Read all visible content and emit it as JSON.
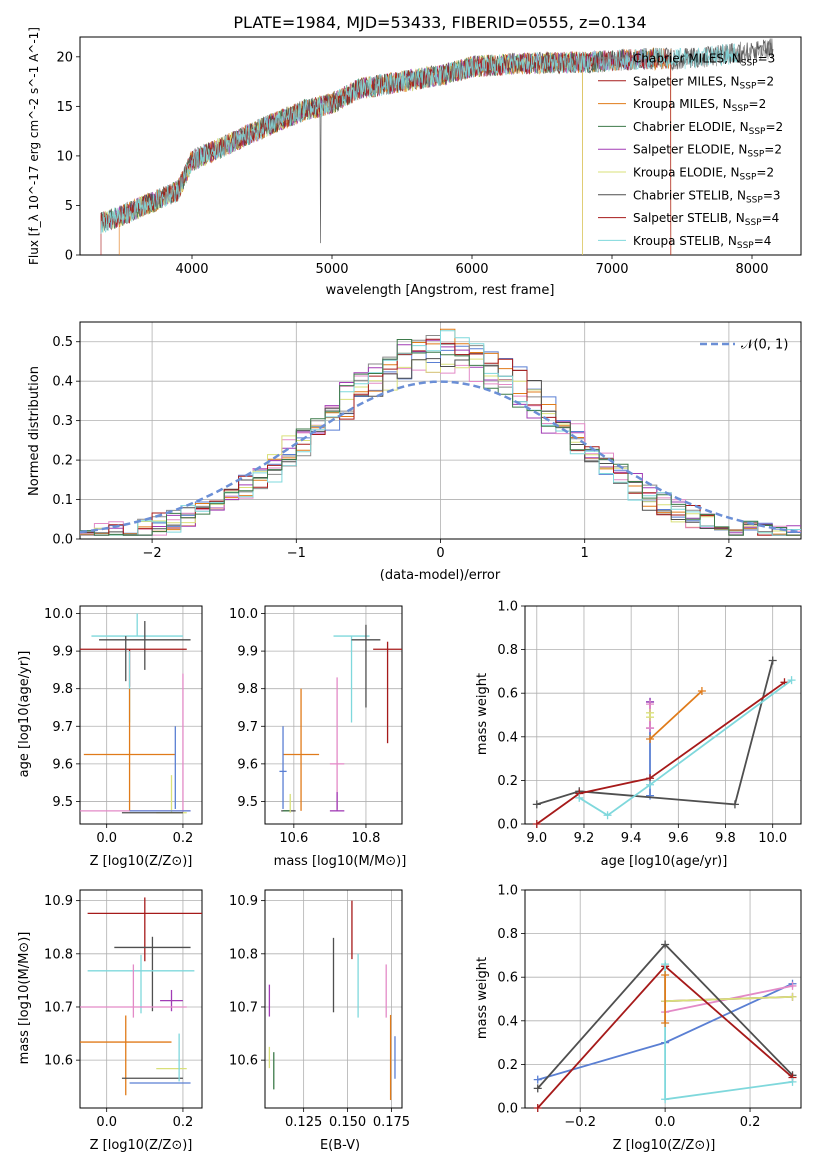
{
  "colors": {
    "blue": "#5a7fd3",
    "orange": "#e07b1a",
    "gray": "#8a8a8a",
    "purple": "#a23cb5",
    "pink": "#e38ac7",
    "yellow": "#d9e07a",
    "dark": "#4f4f4f",
    "red": "#a61a1a",
    "cyan": "#7fd8dc",
    "green": "#3d7a4a"
  },
  "chart_data": [
    {
      "id": "spectrum",
      "type": "line",
      "title": "PLATE=1984, MJD=53433, FIBERID=0555, z=0.134",
      "xlabel": "wavelength [Angstrom, rest frame]",
      "ylabel": "Flux [f_λ 10^-17 erg cm^-2 s^-1 A^-1]",
      "xlim": [
        3200,
        8350
      ],
      "ylim": [
        0,
        22
      ],
      "xticks": [
        "4000",
        "5000",
        "6000",
        "7000",
        "8000"
      ],
      "yticks": [
        "0",
        "5",
        "10",
        "15",
        "20"
      ],
      "grid": false,
      "legend_position": "top-right",
      "legend": [
        "Chabrier MILES, N_SSP=3",
        "Salpeter MILES, N_SSP=2",
        "Kroupa MILES, N_SSP=2",
        "Chabrier ELODIE, N_SSP=2",
        "Salpeter ELODIE, N_SSP=2",
        "Kroupa ELODIE, N_SSP=2",
        "Chabrier STELIB, N_SSP=3",
        "Salpeter STELIB, N_SSP=4",
        "Kroupa STELIB, N_SSP=4"
      ],
      "continuum": {
        "wavelength": [
          3350,
          3500,
          3700,
          3900,
          4000,
          4200,
          4500,
          4800,
          5000,
          5200,
          5500,
          5800,
          6000,
          6300,
          6600,
          6900,
          7200,
          7500,
          7800,
          8100
        ],
        "flux": [
          3.2,
          4.0,
          5.2,
          6.5,
          9.5,
          10.8,
          12.8,
          14.6,
          15.3,
          16.8,
          17.5,
          18.2,
          19.0,
          19.3,
          19.4,
          19.5,
          19.8,
          19.8,
          20.2,
          20.8
        ]
      }
    },
    {
      "id": "residuals",
      "type": "histogram",
      "xlabel": "(data-model)/error",
      "ylabel": "Normed distribution",
      "xlim": [
        -2.5,
        2.5
      ],
      "ylim": [
        0,
        0.55
      ],
      "xticks": [
        "−2",
        "−1",
        "0",
        "1",
        "2"
      ],
      "yticks": [
        "0.0",
        "0.1",
        "0.2",
        "0.3",
        "0.4",
        "0.5"
      ],
      "grid": true,
      "legend_position": "top-right",
      "legend": [
        "𝒩(0, 1)"
      ],
      "bin_width": 0.1
    },
    {
      "id": "age_vs_Z",
      "type": "scatter",
      "xlabel": "Z [log10(Z/Z⊙)]",
      "ylabel": "age  [log10(age/yr)]",
      "xlim": [
        -0.07,
        0.25
      ],
      "ylim": [
        9.44,
        10.02
      ],
      "xticks": [
        "0.0",
        "0.2"
      ],
      "yticks": [
        "9.5",
        "9.6",
        "9.7",
        "9.8",
        "9.9",
        "10.0"
      ],
      "grid": true
    },
    {
      "id": "age_vs_mass",
      "type": "scatter",
      "xlabel": "mass [log10(M/M⊙)]",
      "ylabel": "",
      "xlim": [
        10.52,
        10.9
      ],
      "ylim": [
        9.44,
        10.02
      ],
      "xticks": [
        "10.6",
        "10.8"
      ],
      "yticks": [
        "9.5",
        "9.6",
        "9.7",
        "9.8",
        "9.9",
        "10.0"
      ],
      "grid": true
    },
    {
      "id": "mass_weight_vs_age",
      "type": "line",
      "xlabel": "age  [log10(age/yr)]",
      "ylabel": "mass weight",
      "xlim": [
        8.95,
        10.12
      ],
      "ylim": [
        0,
        1
      ],
      "xticks": [
        "9.0",
        "9.2",
        "9.4",
        "9.6",
        "9.8",
        "10.0"
      ],
      "yticks": [
        "0.0",
        "0.2",
        "0.4",
        "0.6",
        "0.8",
        "1.0"
      ],
      "grid": true,
      "series": [
        {
          "color": "blue",
          "x": [
            9.48,
            9.48
          ],
          "y": [
            0.13,
            0.56
          ]
        },
        {
          "color": "orange",
          "x": [
            9.48,
            9.7
          ],
          "y": [
            0.39,
            0.61
          ]
        },
        {
          "color": "purple",
          "x": [
            9.48,
            9.48
          ],
          "y": [
            0.44,
            0.56
          ]
        },
        {
          "color": "pink",
          "x": [
            9.48,
            9.48
          ],
          "y": [
            0.44,
            0.55
          ]
        },
        {
          "color": "yellow",
          "x": [
            9.48,
            9.48
          ],
          "y": [
            0.49,
            0.51
          ]
        },
        {
          "color": "dark",
          "x": [
            9.0,
            9.18,
            9.84,
            10.0
          ],
          "y": [
            0.09,
            0.15,
            0.09,
            0.75
          ]
        },
        {
          "color": "red",
          "x": [
            9.0,
            9.18,
            9.48,
            10.05
          ],
          "y": [
            0.0,
            0.14,
            0.21,
            0.65
          ]
        },
        {
          "color": "cyan",
          "x": [
            9.18,
            9.3,
            9.48,
            10.08
          ],
          "y": [
            0.12,
            0.04,
            0.18,
            0.66
          ]
        }
      ]
    },
    {
      "id": "mass_vs_Z",
      "type": "scatter",
      "xlabel": "Z [log10(Z/Z⊙)]",
      "ylabel": "mass [log10(M/M⊙)]",
      "xlim": [
        -0.07,
        0.25
      ],
      "ylim": [
        10.51,
        10.92
      ],
      "xticks": [
        "0.0",
        "0.2"
      ],
      "yticks": [
        "10.6",
        "10.7",
        "10.8",
        "10.9"
      ],
      "grid": true
    },
    {
      "id": "mass_vs_ebv",
      "type": "scatter",
      "xlabel": "E(B-V)",
      "ylabel": "",
      "xlim": [
        0.103,
        0.181
      ],
      "ylim": [
        10.51,
        10.92
      ],
      "xticks": [
        "0.125",
        "0.150",
        "0.175"
      ],
      "yticks": [
        "10.6",
        "10.7",
        "10.8",
        "10.9"
      ],
      "grid": true
    },
    {
      "id": "mass_weight_vs_Z",
      "type": "line",
      "xlabel": "Z [log10(Z/Z⊙)]",
      "ylabel": "mass weight",
      "xlim": [
        -0.33,
        0.32
      ],
      "ylim": [
        0,
        1
      ],
      "xticks": [
        "−0.2",
        "0.0",
        "0.2"
      ],
      "yticks": [
        "0.0",
        "0.2",
        "0.4",
        "0.6",
        "0.8",
        "1.0"
      ],
      "grid": true,
      "series": [
        {
          "color": "blue",
          "x": [
            -0.3,
            0.0,
            0.3
          ],
          "y": [
            0.13,
            0.3,
            0.57
          ]
        },
        {
          "color": "pink",
          "x": [
            0.0,
            0.3
          ],
          "y": [
            0.44,
            0.56
          ]
        },
        {
          "color": "purple",
          "x": [
            0.0,
            0.3
          ],
          "y": [
            0.49,
            0.51
          ]
        },
        {
          "color": "yellow",
          "x": [
            0.0,
            0.3
          ],
          "y": [
            0.49,
            0.51
          ]
        },
        {
          "color": "dark",
          "x": [
            -0.3,
            0.0,
            0.3
          ],
          "y": [
            0.09,
            0.75,
            0.15
          ]
        },
        {
          "color": "red",
          "x": [
            -0.3,
            0.0,
            0.3
          ],
          "y": [
            0.0,
            0.65,
            0.14
          ]
        },
        {
          "color": "cyan",
          "x": [
            0.0,
            0.0,
            0.3
          ],
          "y": [
            0.66,
            0.04,
            0.12
          ]
        },
        {
          "color": "orange",
          "x": [
            0.0,
            0.0
          ],
          "y": [
            0.39,
            0.61
          ]
        }
      ]
    }
  ],
  "errorbars": {
    "age_vs_Z": [
      {
        "color": "cyan",
        "x": 0.08,
        "xerr": 0.12,
        "y": 9.94,
        "yerr": [
          0.0,
          0.06
        ]
      },
      {
        "color": "dark",
        "x": 0.1,
        "xerr": 0.12,
        "y": 9.93,
        "yerr": [
          0.08,
          0.05
        ]
      },
      {
        "color": "red",
        "x": 0.06,
        "xerr": 0.15,
        "y": 9.905,
        "yerr": [
          0.1,
          0.0
        ]
      },
      {
        "color": "cyan",
        "x": 0.06,
        "xerr": 0.0,
        "y": 9.8,
        "yerr": [
          0.09,
          0.1
        ]
      },
      {
        "color": "dark",
        "x": 0.05,
        "xerr": 0.0,
        "y": 9.9,
        "yerr": [
          0.08,
          0.04
        ]
      },
      {
        "color": "orange",
        "x": 0.06,
        "xerr": 0.12,
        "y": 9.625,
        "yerr": [
          0.15,
          0.175
        ]
      },
      {
        "color": "pink",
        "x": 0.07,
        "xerr": 0.15,
        "y": 9.475,
        "yerr": [
          0.0,
          0.0
        ]
      },
      {
        "color": "pink",
        "x": 0.2,
        "xerr": 0.0,
        "y": 9.6,
        "yerr": [
          0.13,
          0.24
        ]
      },
      {
        "color": "blue",
        "x": 0.18,
        "xerr": 0.0,
        "y": 9.58,
        "yerr": [
          0.1,
          0.12
        ]
      },
      {
        "color": "yellow",
        "x": 0.17,
        "xerr": 0.04,
        "y": 9.47,
        "yerr": [
          0.0,
          0.1
        ]
      },
      {
        "color": "dark",
        "x": 0.12,
        "xerr": 0.08,
        "y": 9.47,
        "yerr": [
          0.0,
          0.0
        ]
      },
      {
        "color": "blue",
        "x": 0.14,
        "xerr": 0.08,
        "y": 9.475,
        "yerr": [
          0.0,
          0.0
        ]
      }
    ],
    "age_vs_mass": [
      {
        "color": "cyan",
        "x": 10.76,
        "xerr": 0.05,
        "y": 9.94,
        "yerr": [
          0.23,
          0.0
        ]
      },
      {
        "color": "dark",
        "x": 10.8,
        "xerr": 0.04,
        "y": 9.93,
        "yerr": [
          0.18,
          0.04
        ]
      },
      {
        "color": "red",
        "x": 10.86,
        "xerr": 0.04,
        "y": 9.905,
        "yerr": [
          0.25,
          0.02
        ]
      },
      {
        "color": "orange",
        "x": 10.62,
        "xerr": 0.05,
        "y": 9.625,
        "yerr": [
          0.15,
          0.175
        ]
      },
      {
        "color": "pink",
        "x": 10.72,
        "xerr": 0.02,
        "y": 9.6,
        "yerr": [
          0.12,
          0.23
        ]
      },
      {
        "color": "blue",
        "x": 10.57,
        "xerr": 0.01,
        "y": 9.58,
        "yerr": [
          0.1,
          0.12
        ]
      },
      {
        "color": "purple",
        "x": 10.72,
        "xerr": 0.02,
        "y": 9.475,
        "yerr": [
          0.0,
          0.05
        ]
      },
      {
        "color": "dark",
        "x": 10.585,
        "xerr": 0.02,
        "y": 9.475,
        "yerr": [
          0.0,
          0.0
        ]
      },
      {
        "color": "green",
        "x": 10.58,
        "xerr": 0.01,
        "y": 9.475,
        "yerr": [
          0.0,
          0.0
        ]
      },
      {
        "color": "yellow",
        "x": 10.59,
        "xerr": 0.0,
        "y": 9.5,
        "yerr": [
          0.03,
          0.02
        ]
      }
    ],
    "mass_vs_Z": [
      {
        "color": "red",
        "x": 0.1,
        "xerr": 0.15,
        "y": 10.876,
        "yerr": [
          0.09,
          0.03
        ]
      },
      {
        "color": "dark",
        "x": 0.12,
        "xerr": 0.1,
        "y": 10.812,
        "yerr": [
          0.12,
          0.02
        ]
      },
      {
        "color": "cyan",
        "x": 0.09,
        "xerr": 0.14,
        "y": 10.768,
        "yerr": [
          0.08,
          0.03
        ]
      },
      {
        "color": "purple",
        "x": 0.17,
        "xerr": 0.03,
        "y": 10.712,
        "yerr": [
          0.02,
          0.02
        ]
      },
      {
        "color": "pink",
        "x": 0.07,
        "xerr": 0.14,
        "y": 10.7,
        "yerr": [
          0.02,
          0.08
        ]
      },
      {
        "color": "orange",
        "x": 0.05,
        "xerr": 0.12,
        "y": 10.634,
        "yerr": [
          0.1,
          0.05
        ]
      },
      {
        "color": "yellow",
        "x": 0.17,
        "xerr": 0.04,
        "y": 10.584,
        "yerr": [
          0.0,
          0.0
        ]
      },
      {
        "color": "dark",
        "x": 0.12,
        "xerr": 0.08,
        "y": 10.566,
        "yerr": [
          0.0,
          0.0
        ]
      },
      {
        "color": "blue",
        "x": 0.14,
        "xerr": 0.08,
        "y": 10.557,
        "yerr": [
          0.0,
          0.0
        ]
      },
      {
        "color": "cyan",
        "x": 0.19,
        "xerr": 0.0,
        "y": 10.6,
        "yerr": [
          0.04,
          0.05
        ]
      }
    ],
    "mass_vs_ebv": [
      {
        "color": "red",
        "x": 0.1525,
        "y": 10.84,
        "yerr": [
          0.05,
          0.06
        ]
      },
      {
        "color": "dark",
        "x": 0.142,
        "y": 10.76,
        "yerr": [
          0.07,
          0.07
        ]
      },
      {
        "color": "cyan",
        "x": 0.156,
        "y": 10.74,
        "yerr": [
          0.06,
          0.06
        ]
      },
      {
        "color": "purple",
        "x": 0.1055,
        "y": 10.712,
        "yerr": [
          0.03,
          0.03
        ]
      },
      {
        "color": "pink",
        "x": 0.172,
        "y": 10.7,
        "yerr": [
          0.02,
          0.08
        ]
      },
      {
        "color": "orange",
        "x": 0.1745,
        "y": 10.585,
        "yerr": [
          0.06,
          0.1
        ]
      },
      {
        "color": "blue",
        "x": 0.177,
        "y": 10.565,
        "yerr": [
          0.0,
          0.08
        ]
      },
      {
        "color": "yellow",
        "x": 0.1055,
        "y": 10.585,
        "yerr": [
          0.0,
          0.04
        ]
      },
      {
        "color": "green",
        "x": 0.108,
        "y": 10.585,
        "yerr": [
          0.04,
          0.03
        ]
      }
    ]
  }
}
